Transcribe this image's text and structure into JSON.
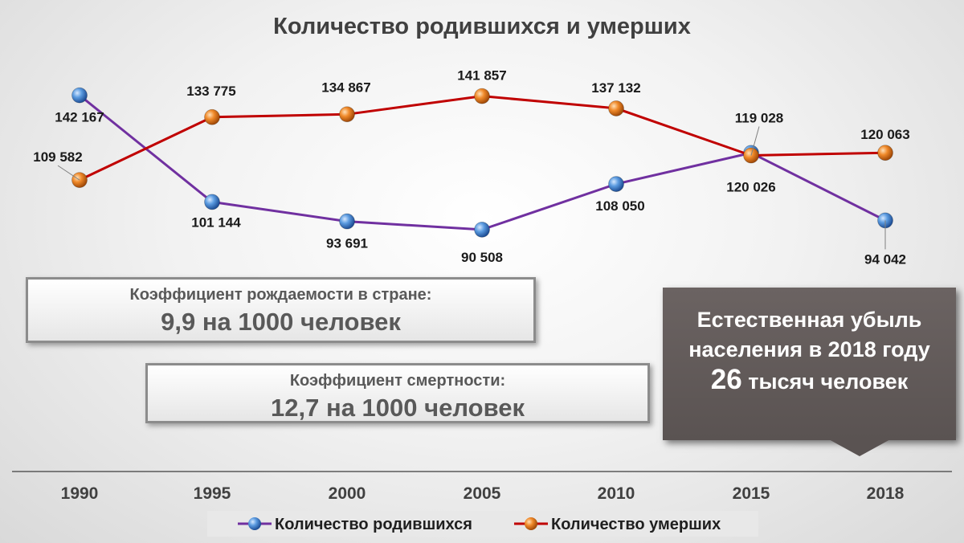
{
  "chart_data": {
    "type": "line",
    "title": "Количество родившихся и умерших",
    "categories": [
      "1990",
      "1995",
      "2000",
      "2005",
      "2010",
      "2015",
      "2018"
    ],
    "series": [
      {
        "name": "Количество родившихся",
        "color": "#7030a0",
        "marker_color": "#4f8fd6",
        "values": [
          142167,
          101144,
          93691,
          90508,
          108050,
          120026,
          94042
        ],
        "labels": [
          "142 167",
          "101 144",
          "93 691",
          "90 508",
          "108 050",
          "120 026",
          "94 042"
        ]
      },
      {
        "name": "Количество умерших",
        "color": "#c00000",
        "marker_color": "#ec7a1c",
        "values": [
          109582,
          133775,
          134867,
          141857,
          137132,
          119028,
          120063
        ],
        "labels": [
          "109 582",
          "133 775",
          "134 867",
          "141 857",
          "137 132",
          "119 028",
          "120 063"
        ]
      }
    ],
    "ylim": [
      80000,
      150000
    ],
    "legend_position": "bottom"
  },
  "info": {
    "birth_caption": "Коэффициент рождаемости в стране:",
    "birth_value": "9,9 на 1000 человек",
    "death_caption": "Коэффициент смертности:",
    "death_value": "12,7 на 1000 человек"
  },
  "callout": {
    "line1": "Естественная убыль",
    "line2": "населения в 2018 году",
    "number": "26",
    "rest": "тысяч человек"
  }
}
